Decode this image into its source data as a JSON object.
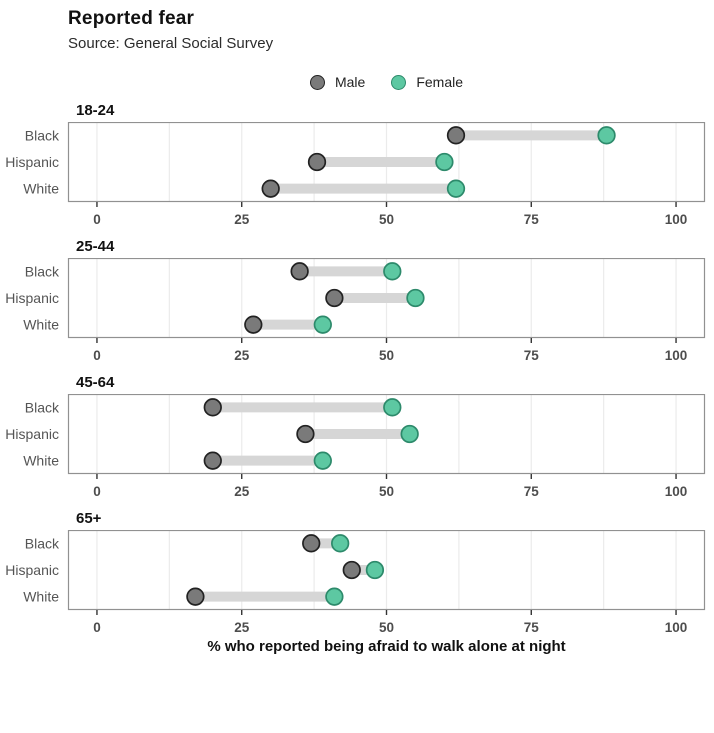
{
  "header": {
    "title": "Reported fear",
    "subtitle": "Source: General Social Survey"
  },
  "legend": [
    {
      "label": "Male",
      "fill": "#7a7a7a",
      "stroke": "#222222"
    },
    {
      "label": "Female",
      "fill": "#5dc8a2",
      "stroke": "#2d8a6b"
    }
  ],
  "xaxis": {
    "label": "% who reported being afraid to walk alone at night",
    "ticks": [
      "0",
      "25",
      "50",
      "75",
      "100"
    ]
  },
  "chart_data": {
    "type": "dumbbell",
    "title": "Reported fear",
    "subtitle": "Source: General Social Survey",
    "xlabel": "% who reported being afraid to walk alone at night",
    "x_range": [
      -5,
      105
    ],
    "x_ticks": [
      0,
      25,
      50,
      75,
      100
    ],
    "grid_step": 12.5,
    "grid": true,
    "legend_position": "top-center",
    "categories": [
      "Black",
      "Hispanic",
      "White"
    ],
    "series_names": [
      "Male",
      "Female"
    ],
    "facets": [
      {
        "title": "18-24",
        "rows": [
          {
            "label": "Black",
            "male": 62,
            "female": 88
          },
          {
            "label": "Hispanic",
            "male": 38,
            "female": 60
          },
          {
            "label": "White",
            "male": 30,
            "female": 62
          }
        ]
      },
      {
        "title": "25-44",
        "rows": [
          {
            "label": "Black",
            "male": 35,
            "female": 51
          },
          {
            "label": "Hispanic",
            "male": 41,
            "female": 55
          },
          {
            "label": "White",
            "male": 27,
            "female": 39
          }
        ]
      },
      {
        "title": "45-64",
        "rows": [
          {
            "label": "Black",
            "male": 20,
            "female": 51
          },
          {
            "label": "Hispanic",
            "male": 36,
            "female": 54
          },
          {
            "label": "White",
            "male": 20,
            "female": 39
          }
        ]
      },
      {
        "title": "65+",
        "rows": [
          {
            "label": "Black",
            "male": 37,
            "female": 42
          },
          {
            "label": "Hispanic",
            "male": 44,
            "female": 48
          },
          {
            "label": "White",
            "male": 17,
            "female": 41
          }
        ]
      }
    ],
    "colors": {
      "male_fill": "#7a7a7a",
      "male_stroke": "#222222",
      "female_fill": "#5dc8a2",
      "female_stroke": "#2d8a6b",
      "bar": "#d6d6d6",
      "grid": "#ebebeb",
      "panel_border": "#919191",
      "tick_mark": "#333333",
      "tick_label": "#4d4d4d",
      "category_label": "#555555"
    }
  }
}
